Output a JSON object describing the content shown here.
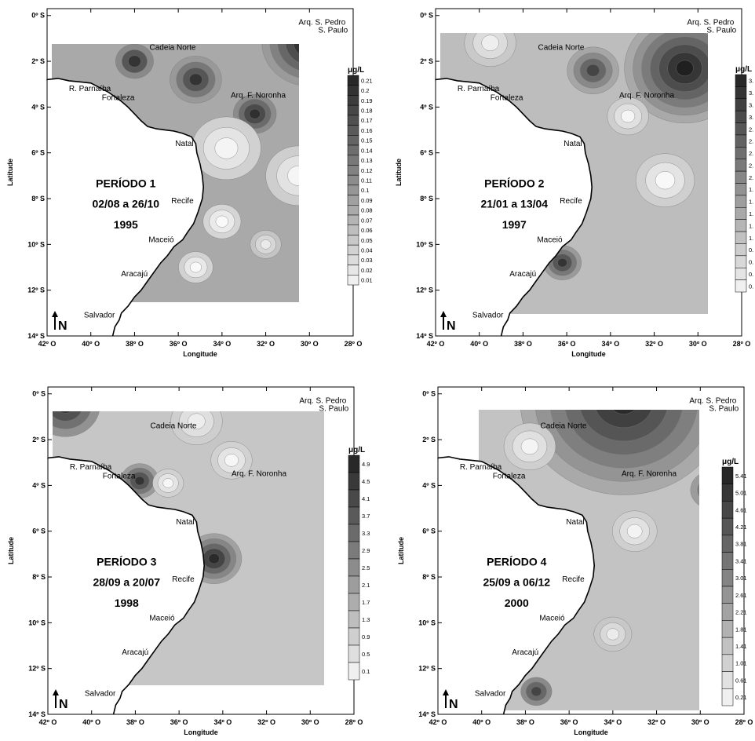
{
  "axis": {
    "x_title": "Longitude",
    "y_title": "Latitude",
    "x_ticks": [
      "42º O",
      "40º O",
      "38º O",
      "36º O",
      "34º O",
      "32º O",
      "30º O",
      "28º O"
    ],
    "y_ticks": [
      "0º S",
      "2º S",
      "4º S",
      "6º S",
      "8º S",
      "10º S",
      "12º S",
      "14º S"
    ]
  },
  "places": [
    "Arq. S. Pedro",
    "S. Paulo",
    "Cadeia Norte",
    "R. Parnaíba",
    "Fortaleza",
    "Arq. F. Noronha",
    "Natal",
    "Recife",
    "Maceió",
    "Aracajú",
    "Salvador"
  ],
  "north_label": "N",
  "unit": "μg/L",
  "panels": [
    {
      "title": "PERÍODO 1",
      "dates": "02/08 a 26/10",
      "year": "1995",
      "levels": [
        "0.21",
        "0.2",
        "0.19",
        "0.18",
        "0.17",
        "0.16",
        "0.15",
        "0.14",
        "0.13",
        "0.12",
        "0.11",
        "0.1",
        "0.09",
        "0.08",
        "0.07",
        "0.06",
        "0.05",
        "0.04",
        "0.03",
        "0.02",
        "0.01"
      ]
    },
    {
      "title": "PERÍODO 2",
      "dates": "21/01 a 13/04",
      "year": "1997",
      "levels": [
        "3.",
        "3.",
        "3.",
        "3.",
        "2.",
        "2.",
        "2.",
        "2.",
        "2.",
        "1.",
        "1.",
        "1.",
        "1.",
        "1.",
        "0.",
        "0.",
        "0.",
        "0."
      ]
    },
    {
      "title": "PERÍODO 3",
      "dates": "28/09 a 20/07",
      "year": "1998",
      "levels": [
        "4.9",
        "4.5",
        "4.1",
        "3.7",
        "3.3",
        "2.9",
        "2.5",
        "2.1",
        "1.7",
        "1.3",
        "0.9",
        "0.5",
        "0.1"
      ]
    },
    {
      "title": "PERÍODO 4",
      "dates": "25/09 a 06/12",
      "year": "2000",
      "levels": [
        "5.41",
        "5.01",
        "4.61",
        "4.21",
        "3.81",
        "3.41",
        "3.01",
        "2.61",
        "2.21",
        "1.81",
        "1.41",
        "1.01",
        "0.61",
        "0.21"
      ]
    }
  ]
}
